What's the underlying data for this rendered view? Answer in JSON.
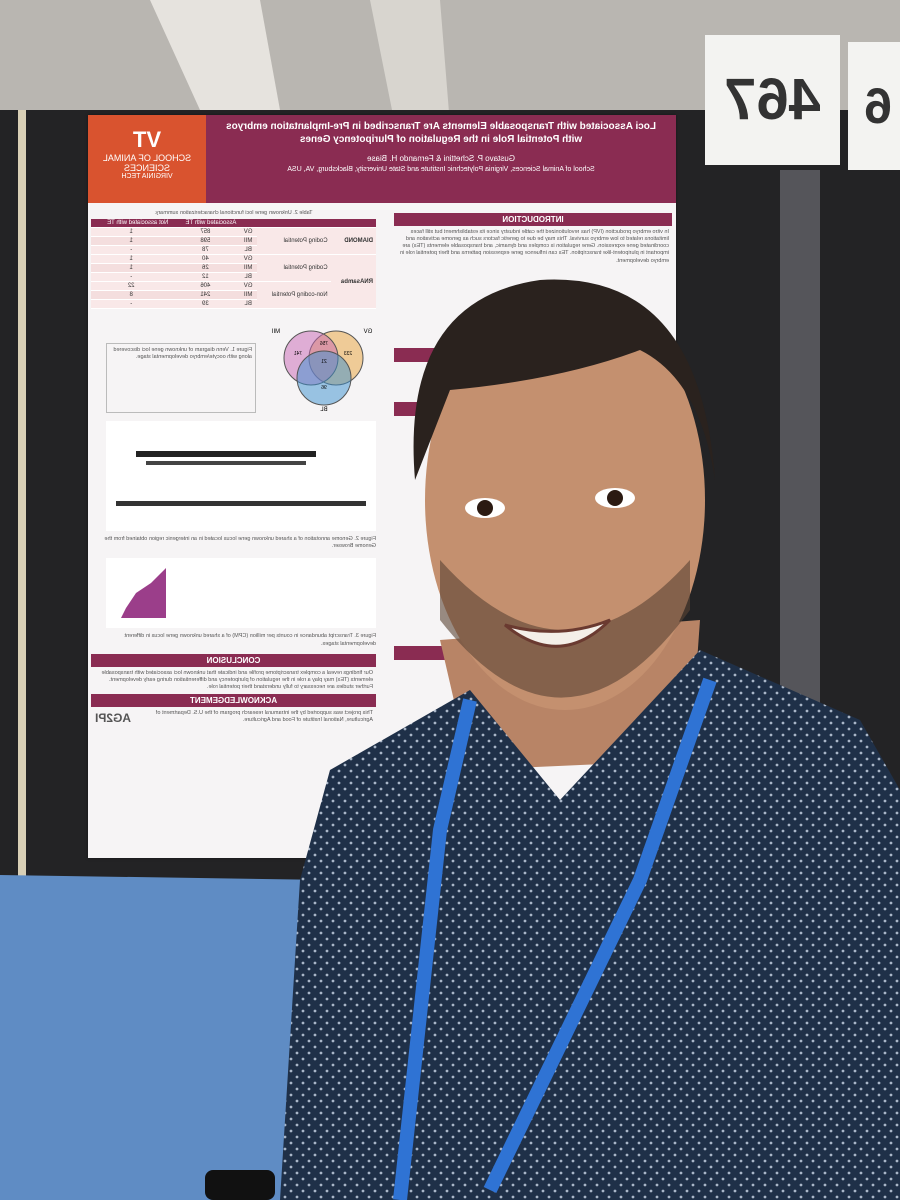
{
  "sign": {
    "number": "467",
    "next_number": "6"
  },
  "poster": {
    "logo": {
      "mark": "VT",
      "school": "SCHOOL OF ANIMAL SCIENCES",
      "university": "VIRGINIA TECH"
    },
    "title": "Loci Associated with Transposable Elements Are Transcribed in Pre-Implantation embryos with Potential Role in the Regulation of Pluripotency Genes",
    "authors": "Gustavo P. Schettini & Fernando H. Biase",
    "affiliation": "School of Animal Sciences, Virginia Polytechnic Institute and State University, Blacksburg, VA, USA",
    "introduction": {
      "heading": "INTRODUCTION",
      "text": "In vitro embryo production (IVP) has revolutionized the cattle industry since its establishment but still faces limitations related to low embryo survival. This may be due to genetic factors such as genome activation and coordinated gene expression. Gene regulation is complex and dynamic, and transposable elements (TEs) are important in pluripotent-like transcription. TEs can influence gene expression patterns and their potential role in embryo development."
    },
    "table": {
      "caption": "Table 2. Unknown gene loci functional characterization summary.",
      "header": [
        "Associated with TE",
        "Not associated with TE"
      ],
      "groups": [
        {
          "tool": "DIAMOND",
          "blocks": [
            {
              "label": "Coding Potential",
              "rows": [
                [
                  "GV",
                  "857",
                  "1"
                ],
                [
                  "MII",
                  "598",
                  "1"
                ],
                [
                  "BL",
                  "78",
                  "-"
                ]
              ]
            }
          ]
        },
        {
          "tool": "RNAsamba",
          "blocks": [
            {
              "label": "Coding Potential",
              "rows": [
                [
                  "GV",
                  "40",
                  "1"
                ],
                [
                  "MII",
                  "26",
                  "1"
                ],
                [
                  "BL",
                  "12",
                  "-"
                ]
              ]
            },
            {
              "label": "Non-coding Potential",
              "rows": [
                [
                  "GV",
                  "406",
                  "22"
                ],
                [
                  "MII",
                  "241",
                  "8"
                ],
                [
                  "BL",
                  "39",
                  "-"
                ]
              ]
            }
          ]
        }
      ]
    },
    "venn": {
      "sets": [
        "GV",
        "MII",
        "BL"
      ],
      "numbers": [
        "233",
        "756",
        "741",
        "21",
        "96"
      ]
    },
    "figures": [
      "Figure 1. Venn diagram of unknown gene loci discovered along with oocyte/embryo developmental stage.",
      "Figure 2. Genome annotation of a shared unknown gene locus located in an intergenic region obtained from the Genome Browser.",
      "Figure 3. Transcript abundance in counts per million (CPM) of a shared unknown gene locus in different developmental stages."
    ],
    "conclusion": {
      "heading": "CONCLUSION",
      "text": "Our findings reveal a complex transcriptome profile and indicate that unknown loci associated with transposable elements (TEs) may play a role in the regulation of pluripotency and differentiation during early development. Further studies are necessary to fully understand their potential role."
    },
    "acknowledgement": {
      "heading": "ACKNOWLEDGEMENT",
      "text": "This project was supported by the intramural research program of the U.S. Department of Agriculture, National Institute of Food and Agriculture.",
      "logo": "AG2PI"
    }
  }
}
